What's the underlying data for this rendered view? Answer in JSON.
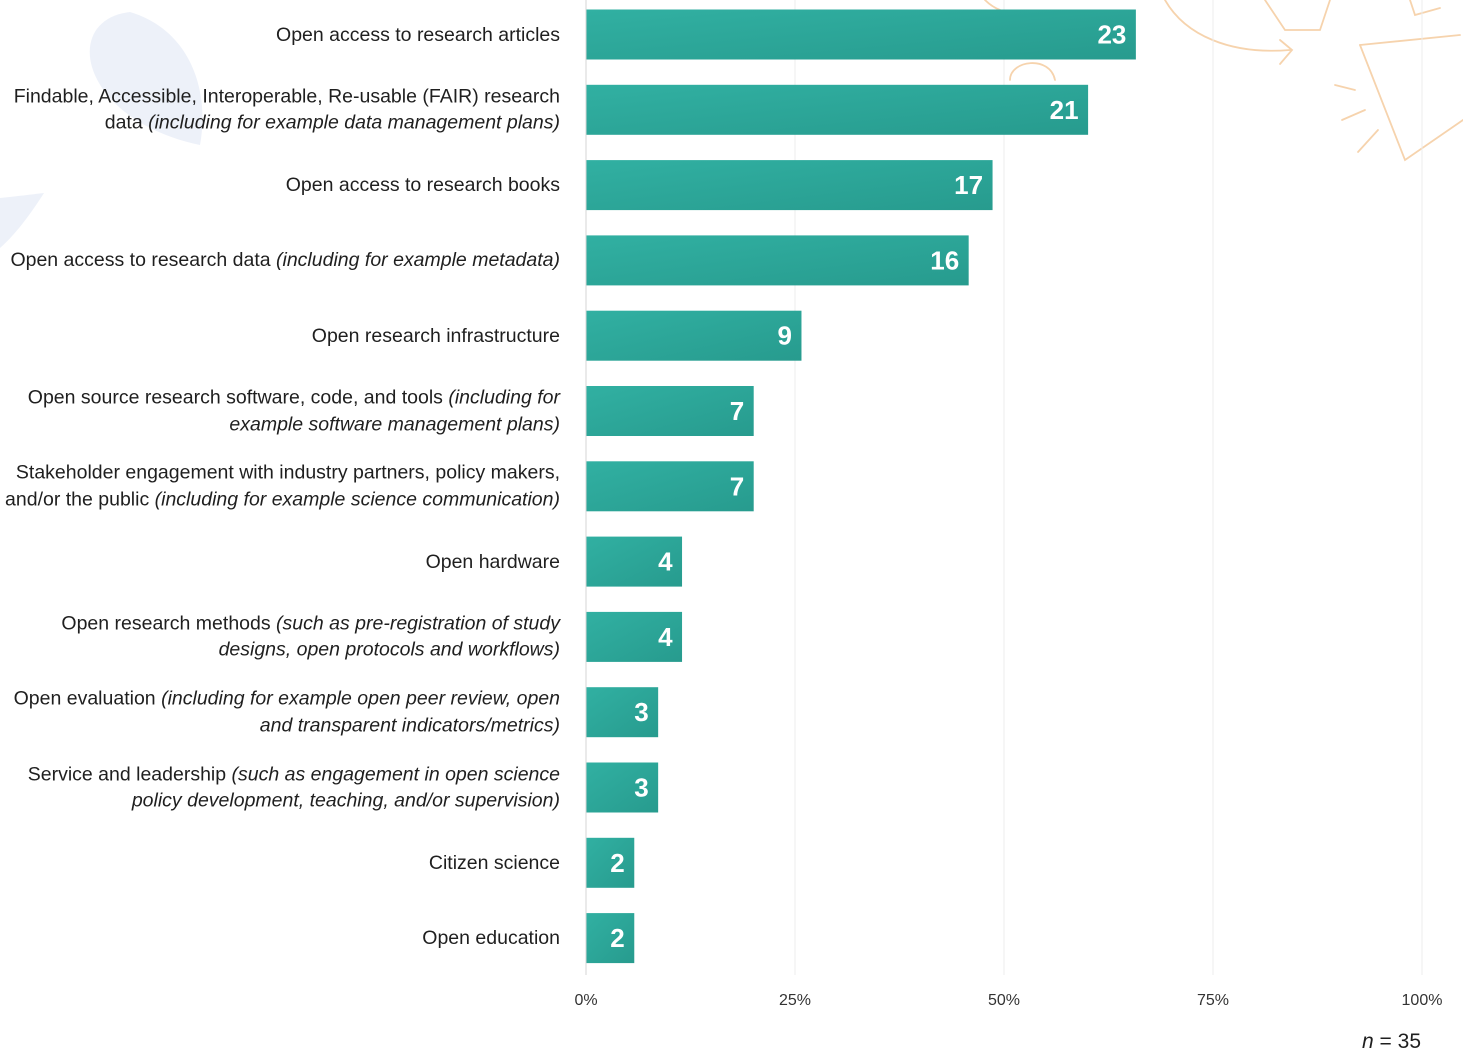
{
  "accent_color": "#2ba698",
  "decor_colors": {
    "blue": "#e8eef8",
    "orange": "#f6d3ad"
  },
  "n_label": {
    "symbol": "n",
    "rest": " = 35"
  },
  "chart_data": {
    "type": "bar",
    "orientation": "horizontal",
    "total_n": 35,
    "xlim": [
      0,
      100
    ],
    "x_unit": "percent",
    "x_ticks": [
      "0%",
      "25%",
      "50%",
      "75%",
      "100%"
    ],
    "x_tick_values": [
      0,
      25,
      50,
      75,
      100
    ],
    "grid": "vertical",
    "categories": [
      {
        "text": "Open access to research articles",
        "note": ""
      },
      {
        "text": "Findable, Accessible, Interoperable, Re-usable (FAIR) research data ",
        "note": "(including for example data management plans)"
      },
      {
        "text": "Open access to research books",
        "note": ""
      },
      {
        "text": "Open access to research data ",
        "note": "(including for example metadata)"
      },
      {
        "text": "Open research infrastructure",
        "note": ""
      },
      {
        "text": "Open source research software, code, and tools ",
        "note": "(including for example software management plans)"
      },
      {
        "text": "Stakeholder engagement with industry partners, policy makers, and/or the public ",
        "note": "(including for example science communication)"
      },
      {
        "text": "Open hardware",
        "note": ""
      },
      {
        "text": "Open research methods ",
        "note": "(such as pre-registration of study designs, open protocols and workflows)"
      },
      {
        "text": "Open evaluation ",
        "note": "(including for example open peer review, open and transparent indicators/metrics)"
      },
      {
        "text": "Service and leadership ",
        "note": "(such as engagement in open science policy development, teaching, and/or supervision)"
      },
      {
        "text": "Citizen science",
        "note": ""
      },
      {
        "text": "Open education",
        "note": ""
      }
    ],
    "values": [
      23,
      21,
      17,
      16,
      9,
      7,
      7,
      4,
      4,
      3,
      3,
      2,
      2
    ],
    "data_labels": [
      "23",
      "21",
      "17",
      "16",
      "9",
      "7",
      "7",
      "4",
      "4",
      "3",
      "3",
      "2",
      "2"
    ]
  }
}
